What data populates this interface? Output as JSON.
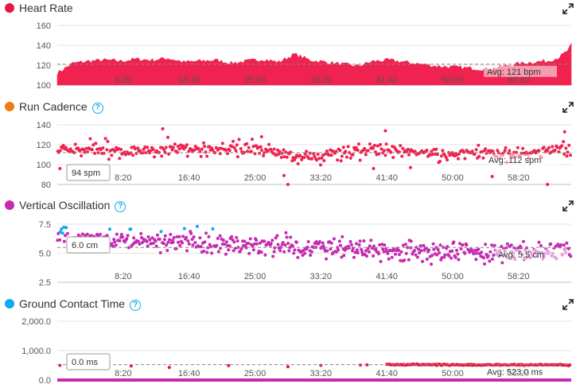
{
  "charts": [
    {
      "title": "Heart Rate",
      "has_help": false,
      "dot_color": "#e8173e",
      "average_label": "Avg: 121 bpm",
      "cursor_label": "",
      "icon_expand": "expand-icon"
    },
    {
      "title": "Run Cadence",
      "has_help": true,
      "dot_color": "#ee7d0f",
      "average_label": "Avg: 112 spm",
      "cursor_label": "94 spm",
      "icon_expand": "expand-icon"
    },
    {
      "title": "Vertical Oscillation",
      "has_help": true,
      "dot_color": "#c62ab2",
      "average_label": "Avg: 5.5 cm",
      "cursor_label": "6.0 cm",
      "icon_expand": "expand-icon"
    },
    {
      "title": "Ground Contact Time",
      "has_help": true,
      "dot_color": "#11a9ed",
      "average_label": "Avg: 523.0 ms",
      "cursor_label": "0.0 ms",
      "icon_expand": "expand-icon"
    }
  ],
  "chart_data": [
    {
      "type": "area",
      "title": "Heart Rate",
      "color": "#f0224f",
      "x_ticks": [
        "8:20",
        "16:40",
        "25:00",
        "33:20",
        "41:40",
        "50:00",
        "58:20"
      ],
      "y_ticks": [
        "100",
        "120",
        "140",
        "160"
      ],
      "ylim": [
        100,
        160
      ],
      "xlim_seconds": [
        0,
        3900
      ],
      "average": 121,
      "x": [
        0,
        120,
        240,
        360,
        480,
        600,
        720,
        840,
        960,
        1080,
        1200,
        1320,
        1440,
        1560,
        1680,
        1800,
        1920,
        2040,
        2160,
        2280,
        2400,
        2520,
        2640,
        2760,
        2880,
        3000,
        3120,
        3240,
        3360,
        3480,
        3600,
        3720,
        3810,
        3870,
        3900
      ],
      "y": [
        112,
        122,
        124,
        125,
        124,
        126,
        125,
        127,
        123,
        124,
        125,
        122,
        124,
        126,
        123,
        131,
        125,
        123,
        121,
        119,
        124,
        125,
        123,
        121,
        119,
        118,
        117,
        116,
        118,
        121,
        123,
        124,
        128,
        134,
        140
      ],
      "grid": true
    },
    {
      "type": "scatter",
      "title": "Run Cadence",
      "color": "#f0224f",
      "x_ticks": [
        "8:20",
        "16:40",
        "25:00",
        "33:20",
        "41:40",
        "50:00",
        "58:20"
      ],
      "y_ticks": [
        "80",
        "100",
        "120",
        "140"
      ],
      "ylim": [
        80,
        140
      ],
      "xlim_seconds": [
        0,
        3900
      ],
      "average": 112,
      "trend_x": [
        0,
        300,
        600,
        900,
        1200,
        1500,
        1650,
        1800,
        2100,
        2400,
        2700,
        2900,
        3000,
        3300,
        3600,
        3900
      ],
      "trend_y": [
        116,
        114,
        114,
        116,
        116,
        115,
        114,
        105,
        112,
        114,
        112,
        110,
        111,
        112,
        113,
        116
      ],
      "outliers": [
        [
          20,
          96
        ],
        [
          250,
          126
        ],
        [
          800,
          136
        ],
        [
          1550,
          128
        ],
        [
          1720,
          89
        ],
        [
          1750,
          80
        ],
        [
          2400,
          96
        ],
        [
          2490,
          134
        ],
        [
          2680,
          97
        ],
        [
          3300,
          88
        ],
        [
          3720,
          80
        ],
        [
          3850,
          133
        ]
      ],
      "grid": true
    },
    {
      "type": "scatter",
      "title": "Vertical Oscillation",
      "color": "#c62ab2",
      "highlight_color": "#11a9ed",
      "x_ticks": [
        "8:20",
        "16:40",
        "25:00",
        "33:20",
        "41:40",
        "50:00",
        "58:20"
      ],
      "y_ticks": [
        "2.5",
        "5.0",
        "7.5"
      ],
      "ylim": [
        2.5,
        7.5
      ],
      "xlim_seconds": [
        0,
        3900
      ],
      "average": 5.5,
      "trend_x": [
        0,
        300,
        600,
        900,
        1200,
        1500,
        1800,
        2100,
        2400,
        2700,
        3000,
        3300,
        3600,
        3900
      ],
      "trend_y": [
        6.3,
        6.2,
        6.1,
        6.0,
        5.9,
        5.7,
        5.5,
        5.4,
        5.3,
        5.2,
        5.1,
        5.0,
        5.1,
        5.2
      ],
      "highlight_x_range": [
        0,
        500
      ],
      "grid": true
    },
    {
      "type": "scatter",
      "title": "Ground Contact Time",
      "color": "#e8173e",
      "baseline_color": "#c62ab2",
      "x_ticks": [
        "8:20",
        "16:40",
        "25:00",
        "33:20",
        "41:40",
        "50:00",
        "58:20"
      ],
      "y_ticks": [
        "0.0",
        "1,000.0",
        "2,000.0"
      ],
      "ylim": [
        0,
        2000
      ],
      "xlim_seconds": [
        0,
        3900
      ],
      "average": 523,
      "trend_x": [
        0,
        500,
        1000,
        1500,
        2000,
        2500,
        3000,
        3500,
        3900
      ],
      "trend_y": [
        520,
        510,
        500,
        515,
        505,
        530,
        520,
        510,
        515
      ],
      "grid": true
    }
  ]
}
